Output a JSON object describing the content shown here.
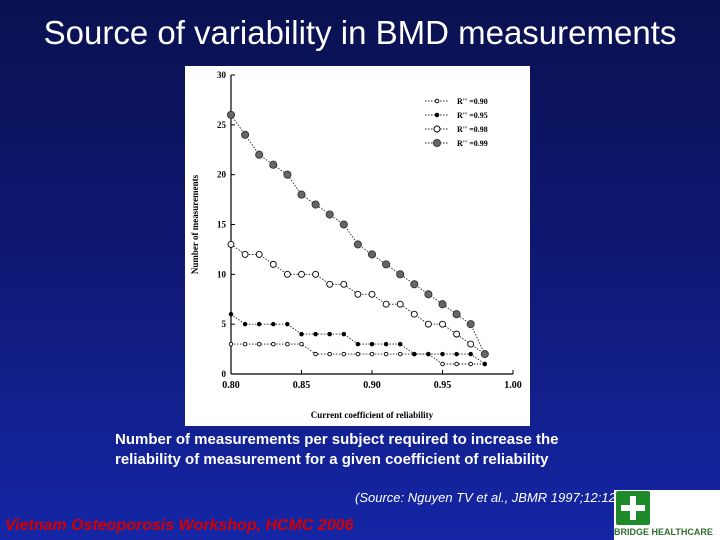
{
  "slide": {
    "title": "Source of variability in BMD measurements",
    "caption_line1": "Number of measurements per subject required to increase the",
    "caption_line2": "reliability of measurement for a given coefficient of reliability",
    "source": "(Source: Nguyen TV et al., JBMR 1997;12:1233)",
    "footer": "Vietnam Osteoporosis Workshop, HCMC 2006",
    "logo_text": "BRIDGE HEALTHCARE",
    "colors": {
      "title": "#ffffff",
      "footer": "#d40000",
      "logo": "#1f8a2a"
    }
  },
  "chart_data": {
    "type": "line",
    "xlabel": "Current coefficient of reliability",
    "ylabel": "Number of measurements",
    "xlim": [
      0.8,
      1.0
    ],
    "ylim": [
      0,
      30
    ],
    "x_ticks": [
      "0.80",
      "0.85",
      "0.90",
      "0.95",
      "1.00"
    ],
    "y_ticks": [
      "0",
      "5",
      "10",
      "15",
      "20",
      "25",
      "30"
    ],
    "grid": false,
    "legend_position": "top-right",
    "series": [
      {
        "name": "R'' =0.90",
        "marker": "small-open",
        "x": [
          0.8,
          0.81,
          0.82,
          0.83,
          0.84,
          0.85,
          0.86,
          0.87,
          0.88,
          0.89,
          0.9,
          0.91,
          0.92,
          0.93,
          0.94,
          0.95,
          0.96,
          0.97,
          0.98
        ],
        "y": [
          3,
          3,
          3,
          3,
          3,
          3,
          2,
          2,
          2,
          2,
          2,
          2,
          2,
          2,
          2,
          1,
          1,
          1,
          1
        ]
      },
      {
        "name": "R'' =0.95",
        "marker": "small-filled",
        "x": [
          0.8,
          0.81,
          0.82,
          0.83,
          0.84,
          0.85,
          0.86,
          0.87,
          0.88,
          0.89,
          0.9,
          0.91,
          0.92,
          0.93,
          0.94,
          0.95,
          0.96,
          0.97,
          0.98
        ],
        "y": [
          6,
          5,
          5,
          5,
          5,
          4,
          4,
          4,
          4,
          3,
          3,
          3,
          3,
          2,
          2,
          2,
          2,
          2,
          1
        ]
      },
      {
        "name": "R'' =0.98",
        "marker": "open",
        "x": [
          0.8,
          0.81,
          0.82,
          0.83,
          0.84,
          0.85,
          0.86,
          0.87,
          0.88,
          0.89,
          0.9,
          0.91,
          0.92,
          0.93,
          0.94,
          0.95,
          0.96,
          0.97,
          0.98
        ],
        "y": [
          13,
          12,
          12,
          11,
          10,
          10,
          10,
          9,
          9,
          8,
          8,
          7,
          7,
          6,
          5,
          5,
          4,
          3,
          2
        ]
      },
      {
        "name": "R'' =0.99",
        "marker": "filled",
        "x": [
          0.8,
          0.81,
          0.82,
          0.83,
          0.84,
          0.85,
          0.86,
          0.87,
          0.88,
          0.89,
          0.9,
          0.91,
          0.92,
          0.93,
          0.94,
          0.95,
          0.96,
          0.97,
          0.98
        ],
        "y": [
          26,
          24,
          22,
          21,
          20,
          18,
          17,
          16,
          15,
          13,
          12,
          11,
          10,
          9,
          8,
          7,
          6,
          5,
          2
        ]
      }
    ]
  }
}
